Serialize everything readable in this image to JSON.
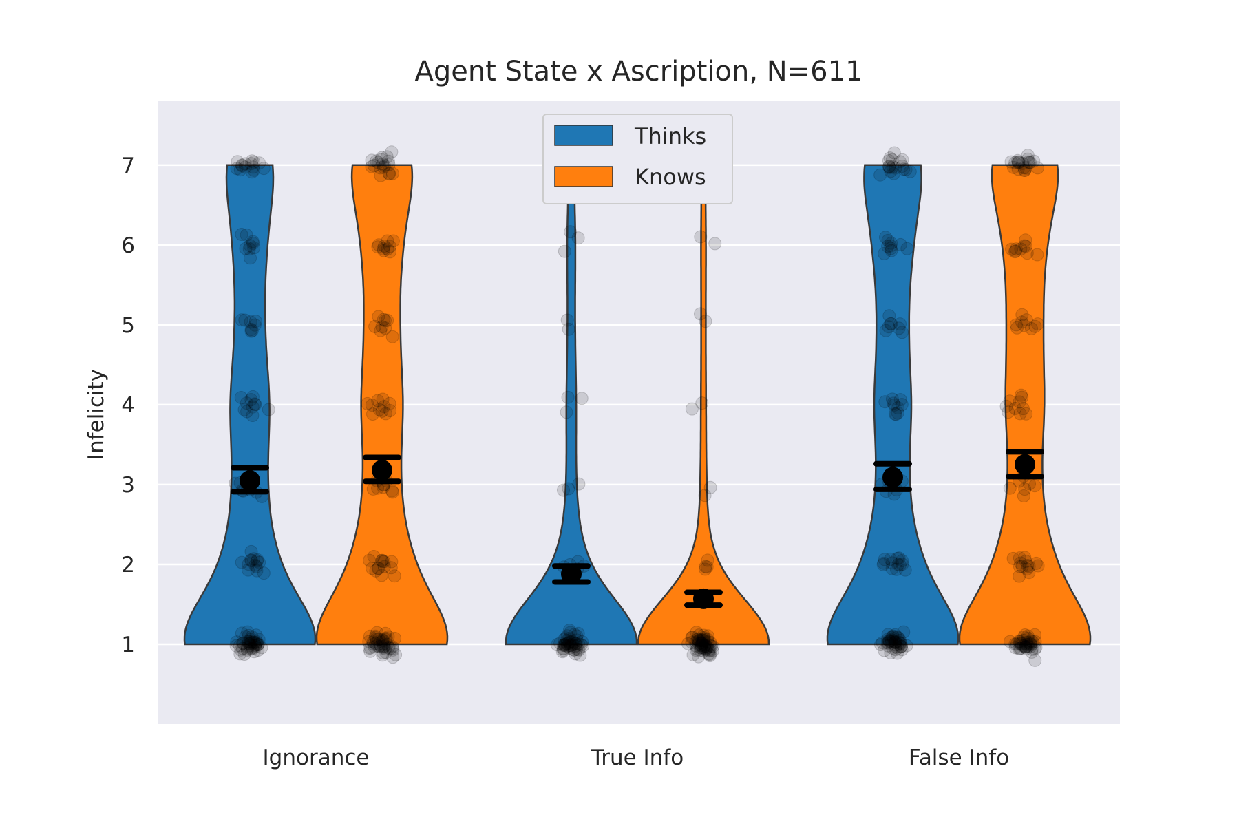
{
  "chart_data": {
    "type": "violin",
    "title": "Agent State x Ascription, N=611",
    "xlabel": "",
    "ylabel": "Infelicity",
    "ylim": [
      0,
      7.8
    ],
    "yticks": [
      1,
      2,
      3,
      4,
      5,
      6,
      7
    ],
    "categories": [
      "Ignorance",
      "True Info",
      "False Info"
    ],
    "grid": true,
    "legend_position": "top-center",
    "series": [
      {
        "name": "Thinks",
        "color": "#1f77b4",
        "means": [
          3.05,
          1.88,
          3.09
        ],
        "ci_low": [
          2.91,
          1.78,
          2.94
        ],
        "ci_high": [
          3.21,
          1.98,
          3.26
        ],
        "violin_max": [
          7,
          7,
          7
        ],
        "distribution": [
          {
            "1": 180,
            "2": 55,
            "3": 35,
            "4": 45,
            "5": 30,
            "6": 35,
            "7": 60
          },
          {
            "1": 200,
            "2": 25,
            "3": 10,
            "4": 12,
            "5": 8,
            "6": 10,
            "7": 6
          },
          {
            "1": 170,
            "2": 55,
            "3": 30,
            "4": 40,
            "5": 30,
            "6": 40,
            "7": 70
          }
        ]
      },
      {
        "name": "Knows",
        "color": "#ff7f0e",
        "means": [
          3.18,
          1.57,
          3.25
        ],
        "ci_low": [
          3.04,
          1.49,
          3.1
        ],
        "ci_high": [
          3.34,
          1.65,
          3.41
        ],
        "violin_max": [
          7,
          7,
          7
        ],
        "distribution": [
          {
            "1": 170,
            "2": 60,
            "3": 35,
            "4": 45,
            "5": 35,
            "6": 40,
            "7": 75
          },
          {
            "1": 240,
            "2": 15,
            "3": 8,
            "4": 7,
            "5": 6,
            "6": 7,
            "7": 5
          },
          {
            "1": 165,
            "2": 55,
            "3": 30,
            "4": 40,
            "5": 35,
            "6": 40,
            "7": 80
          }
        ]
      }
    ]
  }
}
